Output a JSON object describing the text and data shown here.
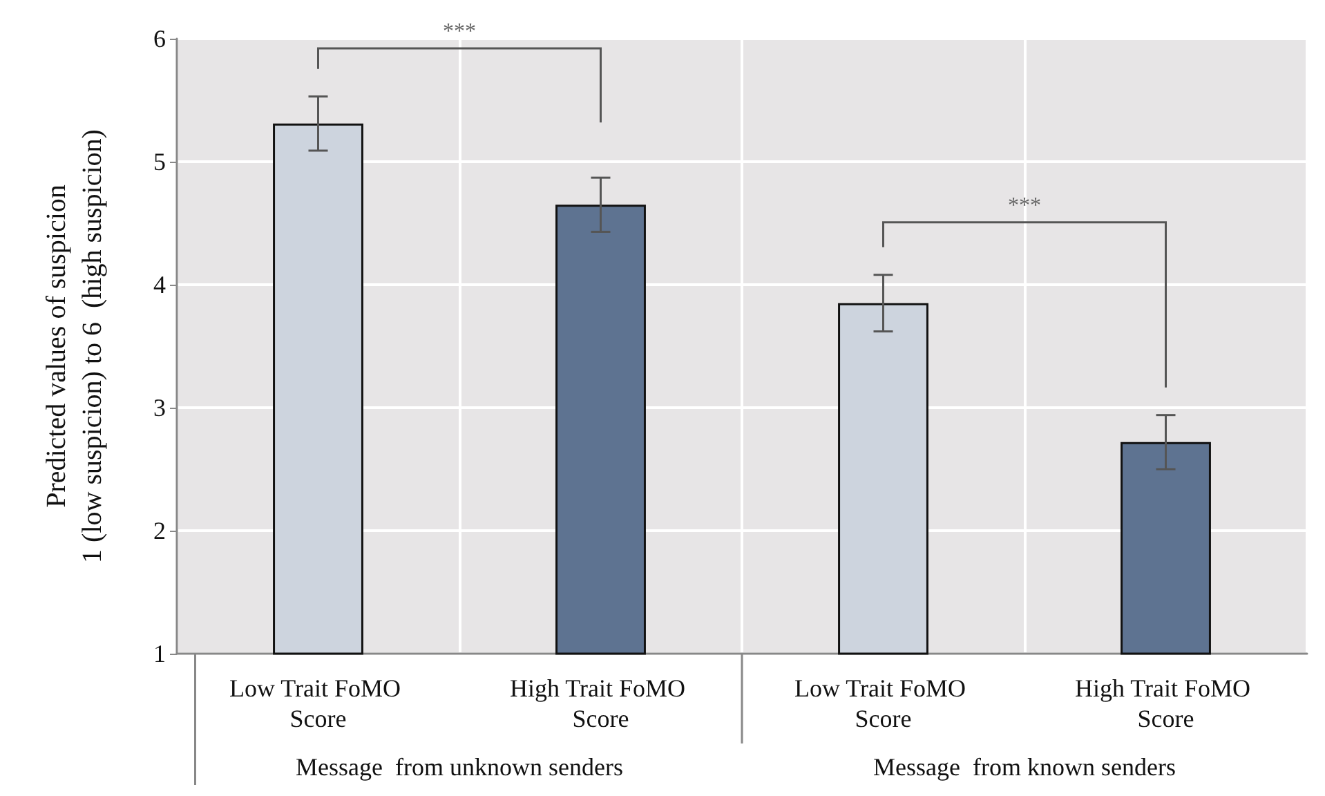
{
  "chart_data": {
    "type": "bar",
    "ylabel": "Predicted values of suspicion\n1 (low suspicion) to 6  (high suspicion)",
    "categories": [
      "Low Trait FoMO Score",
      "High Trait FoMO Score",
      "Low Trait FoMO Score",
      "High Trait FoMO Score"
    ],
    "values": [
      5.31,
      4.65,
      3.85,
      2.72
    ],
    "colors": [
      "#cdd4de",
      "#5e7391",
      "#cdd4de",
      "#5e7391"
    ],
    "errors": [
      0.22,
      0.22,
      0.23,
      0.22
    ],
    "ylim": [
      1,
      6
    ],
    "yticks": [
      1,
      2,
      3,
      4,
      5,
      6
    ],
    "grid": true,
    "annotations": [
      "***",
      "***",
      "Message  from unknown senders",
      "Message  from known senders"
    ]
  }
}
